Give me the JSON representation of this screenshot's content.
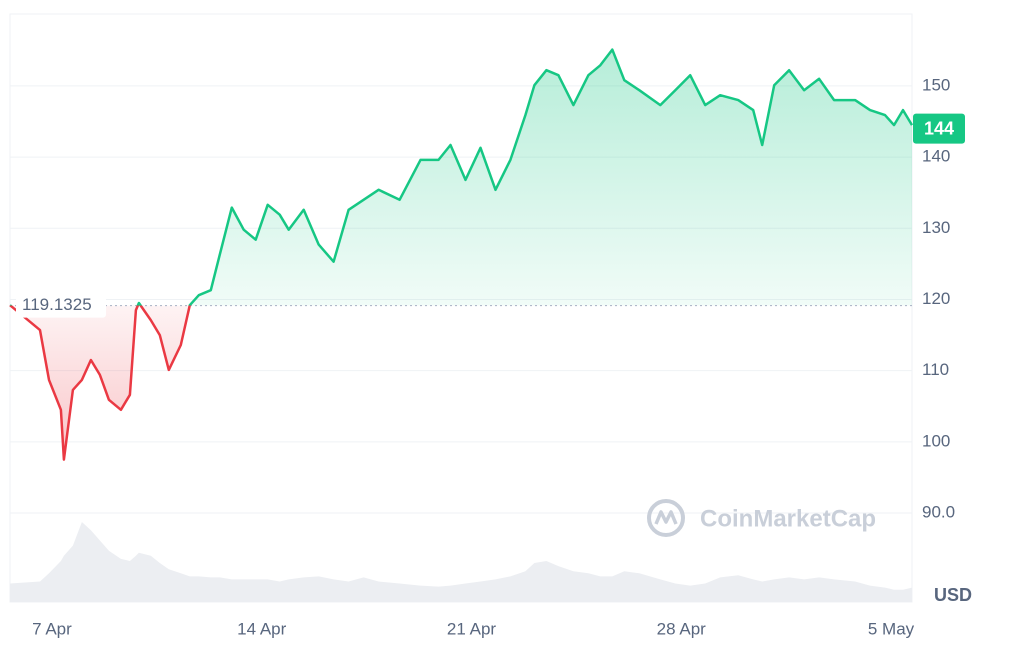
{
  "chart_data": {
    "type": "line",
    "x": [
      5.6,
      6.6,
      6.9,
      7.3,
      7.4,
      7.7,
      8.0,
      8.3,
      8.6,
      8.9,
      9.3,
      9.6,
      9.8,
      9.9,
      10.3,
      10.6,
      10.9,
      11.3,
      11.6,
      11.9,
      12.3,
      12.6,
      13.0,
      13.4,
      13.8,
      14.2,
      14.6,
      14.9,
      15.4,
      15.9,
      16.4,
      16.9,
      17.4,
      17.9,
      18.6,
      19.3,
      19.9,
      20.3,
      20.8,
      21.3,
      21.8,
      22.3,
      22.8,
      23.1,
      23.5,
      23.9,
      24.4,
      24.9,
      25.3,
      25.7,
      26.1,
      26.6,
      27.3,
      27.8,
      28.3,
      28.8,
      29.3,
      29.9,
      30.4,
      30.7,
      31.1,
      31.6,
      32.1,
      32.6,
      33.1,
      33.8,
      34.3,
      34.8,
      35.1,
      35.4,
      35.7
    ],
    "series": [
      {
        "color_up": "#16c784",
        "color_down": "#ea3943",
        "values": [
          119.2,
          115.7,
          108.7,
          104.5,
          97.5,
          107.3,
          108.7,
          111.5,
          109.4,
          105.9,
          104.5,
          106.6,
          118.5,
          119.5,
          117.1,
          115.0,
          110.1,
          113.6,
          119.2,
          120.6,
          121.3,
          126.3,
          132.9,
          129.8,
          128.4,
          133.3,
          131.9,
          129.8,
          132.6,
          127.7,
          125.3,
          132.6,
          134.0,
          135.4,
          134.0,
          139.6,
          139.6,
          141.7,
          136.8,
          141.3,
          135.4,
          139.6,
          145.9,
          150.1,
          152.2,
          151.5,
          147.3,
          151.5,
          152.9,
          155.1,
          150.8,
          149.4,
          147.3,
          149.4,
          151.5,
          147.3,
          148.7,
          148.0,
          146.6,
          141.7,
          150.1,
          152.2,
          149.4,
          151.0,
          148.0,
          148.0,
          146.6,
          145.9,
          144.5,
          146.6,
          144.5
        ]
      }
    ],
    "volume": {
      "color": "#eceef2",
      "values": [
        18,
        20,
        28,
        40,
        45,
        55,
        78,
        70,
        60,
        50,
        42,
        40,
        45,
        48,
        45,
        38,
        32,
        28,
        25,
        25,
        24,
        24,
        22,
        22,
        22,
        22,
        20,
        22,
        24,
        25,
        22,
        20,
        24,
        20,
        18,
        16,
        15,
        16,
        18,
        20,
        22,
        25,
        30,
        38,
        40,
        35,
        30,
        28,
        25,
        25,
        30,
        28,
        22,
        18,
        16,
        18,
        24,
        26,
        22,
        20,
        22,
        24,
        22,
        24,
        22,
        20,
        16,
        14,
        12,
        12,
        14
      ]
    },
    "baseline": 119.1325,
    "current_price": 144,
    "xlim": [
      5.6,
      35.7
    ],
    "xticks": [
      {
        "value": 7,
        "label": "7 Apr"
      },
      {
        "value": 14,
        "label": "14 Apr"
      },
      {
        "value": 21,
        "label": "21 Apr"
      },
      {
        "value": 28,
        "label": "28 Apr"
      },
      {
        "value": 35,
        "label": "5 May"
      }
    ],
    "ylim": [
      77.5,
      160.1
    ],
    "yticks": [
      {
        "value": 90,
        "label": "90.0"
      },
      100,
      110,
      120,
      130,
      140,
      150
    ],
    "y_unit": "USD",
    "watermark": "CoinMarketCap",
    "grid": true
  }
}
